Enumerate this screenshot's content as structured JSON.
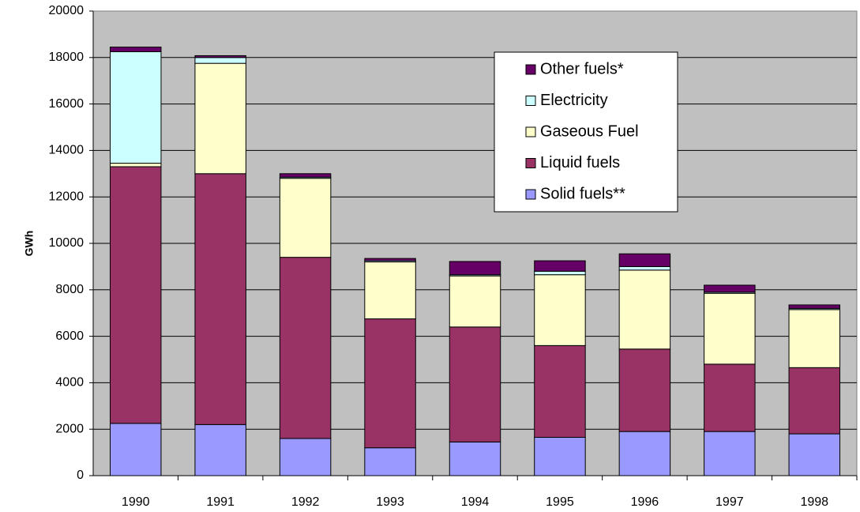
{
  "chart_data": {
    "type": "stacked-bar",
    "y_label": "GWh",
    "categories": [
      "1990",
      "1991",
      "1992",
      "1993",
      "1994",
      "1995",
      "1996",
      "1997",
      "1998"
    ],
    "series": [
      {
        "name": "Solid fuels**",
        "color": "#9999ff",
        "values": [
          2250,
          2200,
          1600,
          1200,
          1450,
          1650,
          1900,
          1900,
          1800
        ]
      },
      {
        "name": "Liquid fuels",
        "color": "#993366",
        "values": [
          11050,
          10800,
          7800,
          5550,
          4950,
          3950,
          3550,
          2900,
          2850
        ]
      },
      {
        "name": "Gaseous Fuel",
        "color": "#ffffcc",
        "values": [
          150,
          4750,
          3400,
          2450,
          2200,
          3050,
          3400,
          3050,
          2500
        ]
      },
      {
        "name": "Electricity",
        "color": "#ccffff",
        "values": [
          4800,
          250,
          50,
          50,
          50,
          150,
          150,
          50,
          50
        ]
      },
      {
        "name": "Other fuels*",
        "color": "#660066",
        "values": [
          200,
          80,
          150,
          100,
          570,
          450,
          550,
          300,
          150
        ]
      }
    ],
    "ylim": [
      0,
      20000
    ],
    "yticks": [
      0,
      2000,
      4000,
      6000,
      8000,
      10000,
      12000,
      14000,
      16000,
      18000,
      20000
    ],
    "grid": true,
    "legend": "top-right"
  }
}
